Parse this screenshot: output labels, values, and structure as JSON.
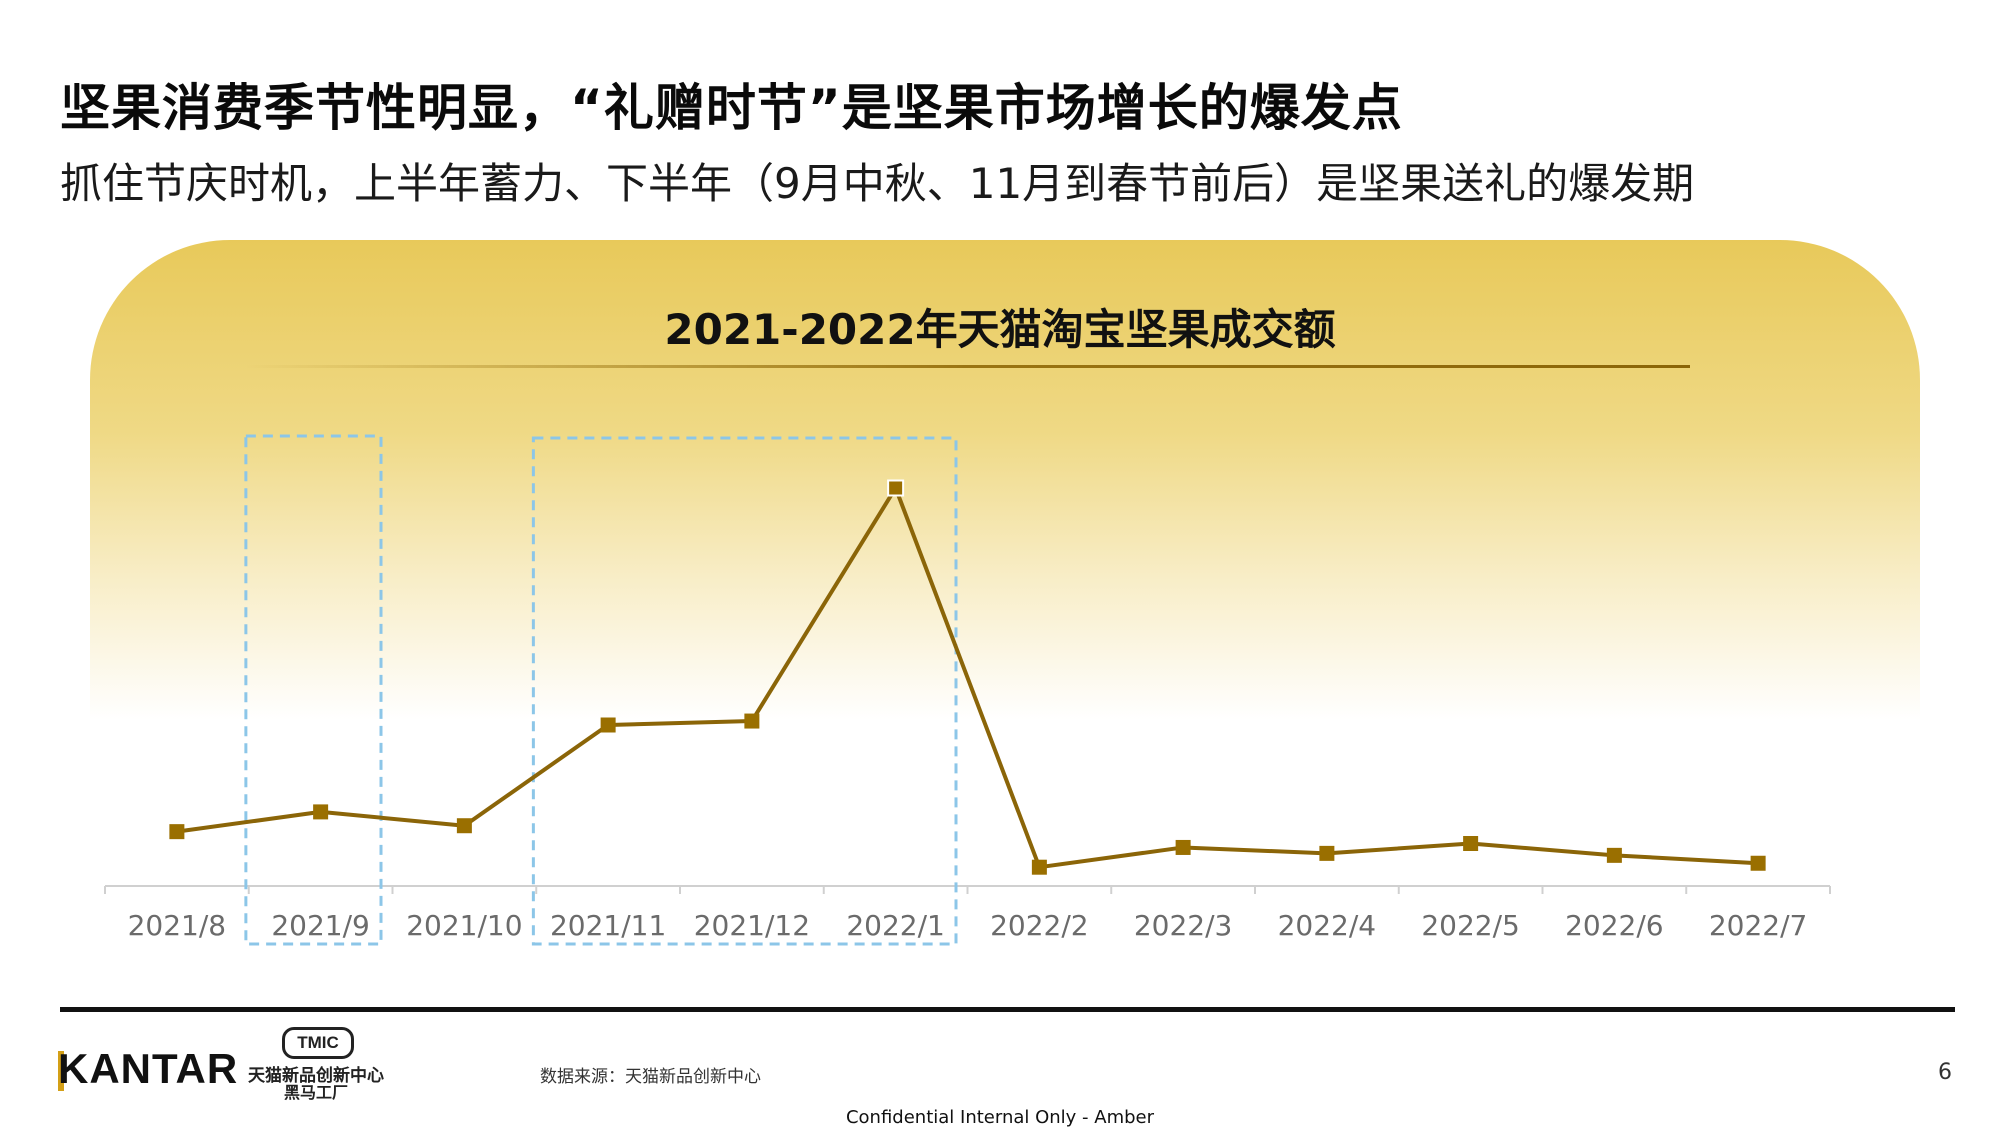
{
  "slide": {
    "headline": "坚果消费季节性明显，“礼赠时节”是坚果市场增长的爆发点",
    "subheadline": "抓住节庆时机，上半年蓄力、下半年（9月中秋、11月到春节前后）是坚果送礼的爆发期",
    "source": "数据来源：天猫新品创新中心",
    "page_number": "6",
    "confidential": "Confidential Internal Only - Amber",
    "logos": {
      "kantar": "KANTAR",
      "tmic_badge": "TMIC",
      "tmic_line1": "天猫新品创新中心",
      "tmic_line2": "黑马工厂"
    }
  },
  "colors": {
    "line": "#8b6508",
    "marker": "#9a6f00",
    "highlight_box": "#8cc6e8",
    "panel_top": "#e8c95a",
    "axis": "#d0d0d0"
  },
  "chart_data": {
    "type": "line",
    "title": "2021-2022年天猫淘宝坚果成交额",
    "categories": [
      "2021/8",
      "2021/9",
      "2021/10",
      "2021/11",
      "2021/12",
      "2022/1",
      "2022/2",
      "2022/3",
      "2022/4",
      "2022/5",
      "2022/6",
      "2022/7"
    ],
    "series": [
      {
        "values": [
          13,
          18,
          14.5,
          40,
          41,
          100,
          4,
          9,
          7.5,
          10,
          7,
          5
        ]
      }
    ],
    "ylim": [
      0,
      100
    ],
    "grid": false,
    "legend": "none",
    "y_axis_visible": false,
    "highlight_groups": [
      {
        "categories": [
          "2021/9"
        ]
      },
      {
        "categories": [
          "2021/11",
          "2021/12",
          "2022/1"
        ]
      }
    ]
  }
}
